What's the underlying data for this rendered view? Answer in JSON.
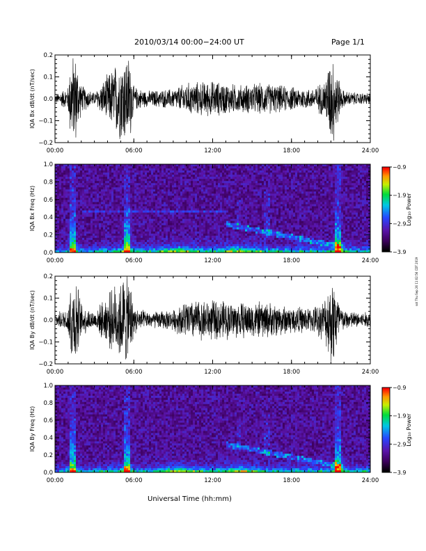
{
  "header": {
    "title": "2010/03/14  00:00−24:00 UT",
    "page": "Page 1/1"
  },
  "footer": {
    "xlabel": "Universal Time (hh:mm)",
    "side_info": "sot Thu Sep 26 11:02:56 CDT 2019"
  },
  "chart_data": [
    {
      "type": "line",
      "ylabel": "IQA Bx dB/dt (nT/sec)",
      "xlim": [
        0,
        24
      ],
      "ylim": [
        -0.2,
        0.2
      ],
      "xticks": [
        "00:00",
        "06:00",
        "12:00",
        "18:00",
        "24:00"
      ],
      "yticks": [
        "0.2",
        "0.1",
        "0.0",
        "−0.1",
        "−0.2"
      ],
      "envelope": {
        "x_hours": [
          0,
          1,
          1.2,
          1.6,
          2,
          3,
          5.1,
          5.4,
          5.7,
          6,
          7,
          9,
          10,
          12,
          14,
          16,
          18,
          19.5,
          20.5,
          21,
          21.3,
          21.7,
          22,
          23,
          24
        ],
        "amplitude": [
          0.02,
          0.06,
          0.22,
          0.22,
          0.07,
          0.03,
          0.22,
          0.22,
          0.22,
          0.06,
          0.04,
          0.05,
          0.08,
          0.09,
          0.07,
          0.08,
          0.06,
          0.05,
          0.09,
          0.22,
          0.22,
          0.07,
          0.04,
          0.03,
          0.03
        ]
      }
    },
    {
      "type": "heatmap",
      "ylabel": "IQA Bx Freq (Hz)",
      "xlim": [
        0,
        24
      ],
      "ylim": [
        0.0,
        1.0
      ],
      "xticks": [
        "00:00",
        "06:00",
        "12:00",
        "18:00",
        "24:00"
      ],
      "yticks": [
        "1.0",
        "0.8",
        "0.6",
        "0.4",
        "0.2",
        "0.0"
      ],
      "colorbar": {
        "label": "Log₁₀ Power",
        "range": [
          -3.9,
          -0.9
        ],
        "ticks": [
          "−0.9",
          "−1.9",
          "−2.9",
          "−3.9"
        ]
      },
      "features": {
        "broadband_events_hours": [
          1.4,
          5.5,
          21.6
        ],
        "low_freq_enhancements_hours": [
          9.5,
          14.0
        ],
        "constant_line_hz": 0.47,
        "rising_tone_hours": [
          13.0,
          22.0
        ]
      }
    },
    {
      "type": "line",
      "ylabel": "IQA By dB/dt (nT/sec)",
      "xlim": [
        0,
        24
      ],
      "ylim": [
        -0.2,
        0.2
      ],
      "xticks": [
        "00:00",
        "06:00",
        "12:00",
        "18:00",
        "24:00"
      ],
      "yticks": [
        "0.2",
        "0.1",
        "0.0",
        "−0.1",
        "−0.2"
      ],
      "envelope": {
        "x_hours": [
          0,
          1,
          1.2,
          1.6,
          2,
          3,
          5.1,
          5.4,
          5.7,
          6,
          7,
          9,
          10,
          12,
          14,
          16,
          18,
          19.5,
          20.5,
          21,
          21.3,
          21.7,
          22,
          23,
          24
        ],
        "amplitude": [
          0.03,
          0.06,
          0.22,
          0.22,
          0.08,
          0.04,
          0.22,
          0.22,
          0.22,
          0.07,
          0.04,
          0.05,
          0.1,
          0.1,
          0.09,
          0.09,
          0.07,
          0.06,
          0.1,
          0.22,
          0.22,
          0.08,
          0.05,
          0.04,
          0.04
        ]
      }
    },
    {
      "type": "heatmap",
      "ylabel": "IQA By Freq (Hz)",
      "xlim": [
        0,
        24
      ],
      "ylim": [
        0.0,
        1.0
      ],
      "xticks": [
        "00:00",
        "06:00",
        "12:00",
        "18:00",
        "24:00"
      ],
      "yticks": [
        "1.0",
        "0.8",
        "0.6",
        "0.4",
        "0.2",
        "0.0"
      ],
      "colorbar": {
        "label": "Log₁₀ Power",
        "range": [
          -3.9,
          -0.9
        ],
        "ticks": [
          "−0.9",
          "−1.9",
          "−2.9",
          "−3.9"
        ]
      },
      "features": {
        "broadband_events_hours": [
          1.4,
          5.5,
          21.6
        ],
        "low_freq_enhancements_hours": [
          9.5,
          14.0
        ],
        "constant_line_hz": null,
        "rising_tone_hours": [
          13.0,
          22.0
        ]
      }
    }
  ]
}
